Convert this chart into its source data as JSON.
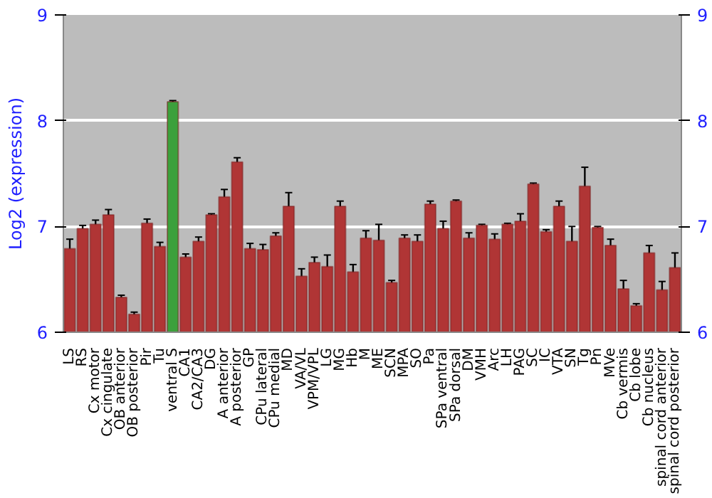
{
  "chart_data": {
    "type": "bar",
    "ylabel": "Log2 (expression)",
    "categories": [
      "LS",
      "RS",
      "Cx motor",
      "Cx cingulate",
      "OB anterior",
      "OB posterior",
      "Pir",
      "Tu",
      "ventral S",
      "CA1",
      "CA2/CA3",
      "DG",
      "A anterior",
      "A posterior",
      "GP",
      "CPu lateral",
      "CPu medial",
      "MD",
      "VA/VL",
      "VPM/VPL",
      "LG",
      "MG",
      "Hb",
      "M",
      "ME",
      "SCN",
      "MPA",
      "SO",
      "Pa",
      "SPa ventral",
      "SPa dorsal",
      "DM",
      "VMH",
      "Arc",
      "LH",
      "PAG",
      "SC",
      "IC",
      "VTA",
      "SN",
      "Tg",
      "Pn",
      "MVe",
      "Cb vermis",
      "Cb lobe",
      "Cb nucleus",
      "spinal cord anterior",
      "spinal cord posterior"
    ],
    "values": [
      6.79,
      6.98,
      7.02,
      7.11,
      6.33,
      6.17,
      7.03,
      6.81,
      8.18,
      6.71,
      6.86,
      7.11,
      7.28,
      7.61,
      6.79,
      6.78,
      6.91,
      7.19,
      6.53,
      6.66,
      6.62,
      7.19,
      6.57,
      6.89,
      6.87,
      6.47,
      6.89,
      6.86,
      7.21,
      6.98,
      7.24,
      6.89,
      7.01,
      6.88,
      7.02,
      7.05,
      7.4,
      6.95,
      7.19,
      6.86,
      7.38,
      6.99,
      6.82,
      6.41,
      6.25,
      6.75,
      6.4,
      6.61
    ],
    "errors": [
      0.09,
      0.03,
      0.04,
      0.05,
      0.02,
      0.02,
      0.04,
      0.04,
      0.01,
      0.03,
      0.04,
      0.01,
      0.07,
      0.04,
      0.05,
      0.05,
      0.03,
      0.13,
      0.07,
      0.05,
      0.11,
      0.05,
      0.07,
      0.07,
      0.15,
      0.02,
      0.03,
      0.06,
      0.03,
      0.07,
      0.01,
      0.05,
      0.01,
      0.05,
      0.01,
      0.07,
      0.01,
      0.02,
      0.05,
      0.14,
      0.18,
      0.01,
      0.06,
      0.08,
      0.02,
      0.07,
      0.08,
      0.14
    ],
    "colors": [
      "#b03535",
      "#b03535",
      "#b03535",
      "#b03535",
      "#b03535",
      "#b03535",
      "#b03535",
      "#b03535",
      "#3ca03c",
      "#b03535",
      "#b03535",
      "#b03535",
      "#b03535",
      "#b03535",
      "#b03535",
      "#b03535",
      "#b03535",
      "#b03535",
      "#b03535",
      "#b03535",
      "#b03535",
      "#b03535",
      "#b03535",
      "#b03535",
      "#b03535",
      "#b03535",
      "#b03535",
      "#b03535",
      "#b03535",
      "#b03535",
      "#b03535",
      "#b03535",
      "#b03535",
      "#b03535",
      "#b03535",
      "#b03535",
      "#b03535",
      "#b03535",
      "#b03535",
      "#b03535",
      "#b03535",
      "#b03535",
      "#b03535",
      "#b03535",
      "#b03535",
      "#b03535",
      "#b03535",
      "#b03535"
    ],
    "ylim": [
      6,
      9
    ],
    "yticks": [
      6,
      7,
      8,
      9
    ],
    "y2lim": [
      6,
      9
    ],
    "y2ticks": [
      6,
      7,
      8,
      9
    ],
    "grid": "y"
  }
}
